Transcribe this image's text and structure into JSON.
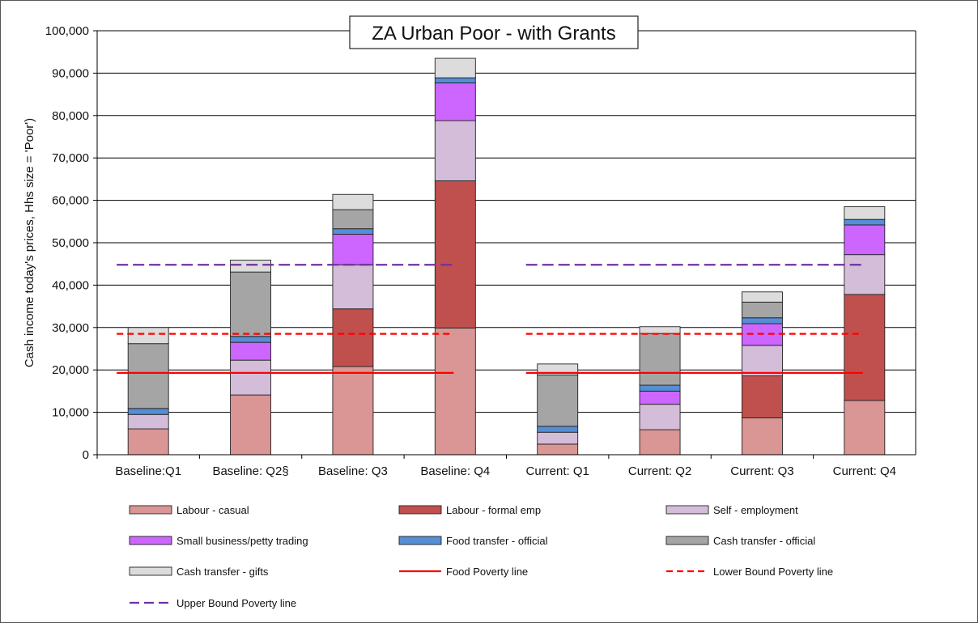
{
  "chart_data": {
    "type": "bar",
    "stacked": true,
    "title": "ZA Urban Poor - with Grants",
    "ylabel": "Cash income today's prices, Hhs size = 'Poor')",
    "ylim": [
      0,
      100000
    ],
    "yticks": [
      "0",
      "10,000",
      "20,000",
      "30,000",
      "40,000",
      "50,000",
      "60,000",
      "70,000",
      "80,000",
      "90,000",
      "100,000"
    ],
    "grid": true,
    "legend_position": "bottom",
    "categories": [
      "Baseline:Q1",
      "Baseline: Q2§",
      "Baseline: Q3",
      "Baseline: Q4",
      "Current: Q1",
      "Current: Q2",
      "Current: Q3",
      "Current: Q4"
    ],
    "series": [
      {
        "name": "Labour - casual",
        "color": "#d99694",
        "values": [
          6100,
          14100,
          20800,
          29900,
          2500,
          5900,
          8700,
          12800
        ]
      },
      {
        "name": "Labour - formal emp",
        "color": "#c0504d",
        "values": [
          0,
          0,
          13600,
          34700,
          0,
          0,
          9900,
          25000
        ]
      },
      {
        "name": "Self - employment",
        "color": "#d4bdd9",
        "values": [
          3400,
          8200,
          10400,
          14200,
          2800,
          6000,
          7200,
          9400
        ]
      },
      {
        "name": "Small business/petty trading",
        "color": "#cc66ff",
        "values": [
          0,
          4200,
          7200,
          8900,
          0,
          3100,
          5100,
          7000
        ]
      },
      {
        "name": "Food transfer - official",
        "color": "#558ed5",
        "values": [
          1400,
          1400,
          1300,
          1200,
          1400,
          1400,
          1400,
          1300
        ]
      },
      {
        "name": "Cash transfer - official",
        "color": "#a5a5a5",
        "values": [
          15300,
          15200,
          4500,
          0,
          12100,
          12200,
          3700,
          0
        ]
      },
      {
        "name": "Cash transfer - gifts",
        "color": "#dcdcdc",
        "values": [
          3800,
          2800,
          3600,
          4600,
          2600,
          1600,
          2400,
          3000
        ]
      }
    ],
    "reference_lines": [
      {
        "name": "Food Poverty line",
        "value": 19300,
        "color": "#ff0000",
        "style": "solid"
      },
      {
        "name": "Lower Bound Poverty line",
        "value": 28500,
        "color": "#ff0000",
        "style": "dashed"
      },
      {
        "name": "Upper Bound Poverty line",
        "value": 44800,
        "color": "#7030a0",
        "style": "dashed"
      }
    ]
  }
}
